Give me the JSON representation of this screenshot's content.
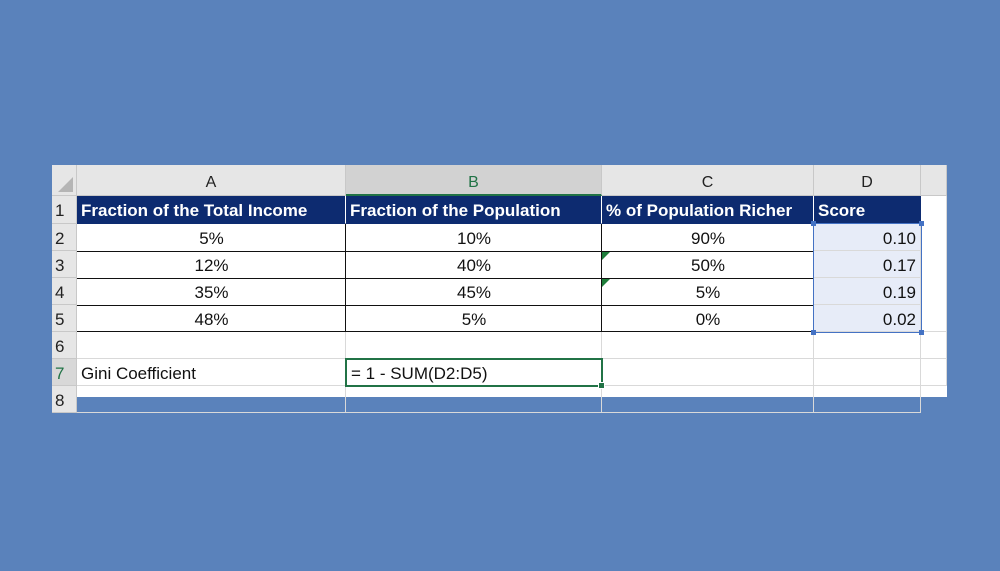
{
  "columns": [
    "A",
    "B",
    "C",
    "D"
  ],
  "rows": [
    "1",
    "2",
    "3",
    "4",
    "5",
    "6",
    "7",
    "8"
  ],
  "header": {
    "a": "Fraction of the Total Income",
    "b": "Fraction of the Population",
    "c": "% of Population Richer",
    "d": "Score"
  },
  "data": [
    {
      "a": "5%",
      "b": "10%",
      "c": "90%",
      "d": "0.10"
    },
    {
      "a": "12%",
      "b": "40%",
      "c": "50%",
      "d": "0.17"
    },
    {
      "a": "35%",
      "b": "45%",
      "c": "5%",
      "d": "0.19"
    },
    {
      "a": "48%",
      "b": "5%",
      "c": "0%",
      "d": "0.02"
    }
  ],
  "gini": {
    "label": "Gini Coefficient",
    "formula": "= 1 - SUM(D2:D5)"
  },
  "colors": {
    "background": "#5a82bb",
    "header_fill": "#0d2b70",
    "selection": "#4472c4",
    "active_cell": "#217346"
  }
}
